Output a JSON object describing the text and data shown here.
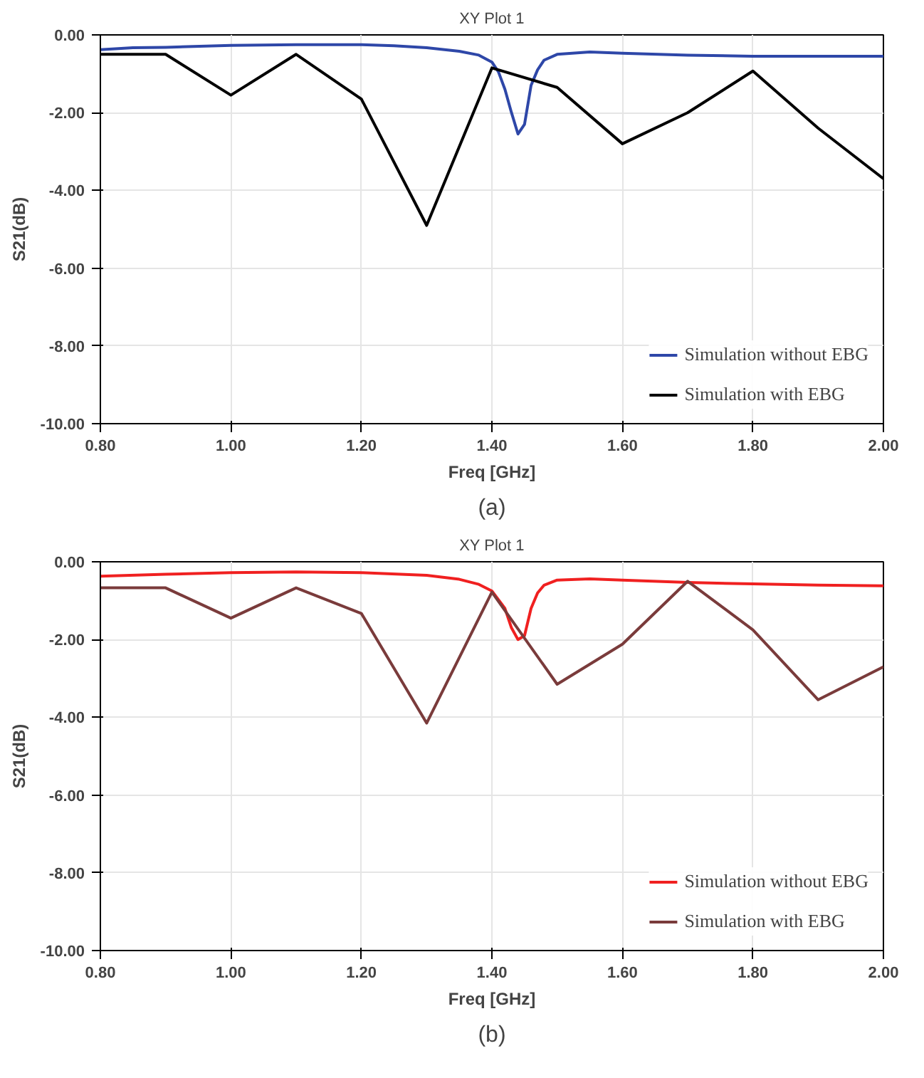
{
  "chart_data": [
    {
      "type": "line",
      "title": "XY Plot 1",
      "xlabel": "Freq [GHz]",
      "ylabel": "S21(dB)",
      "annotations": [
        "(a)"
      ],
      "xlim": [
        0.8,
        2.0
      ],
      "ylim": [
        -10,
        0
      ],
      "xticks": [
        {
          "value": 0.8,
          "label": "0.80"
        },
        {
          "value": 1.0,
          "label": "1.00"
        },
        {
          "value": 1.2,
          "label": "1.20"
        },
        {
          "value": 1.4,
          "label": "1.40"
        },
        {
          "value": 1.6,
          "label": "1.60"
        },
        {
          "value": 1.8,
          "label": "1.80"
        },
        {
          "value": 2.0,
          "label": "2.00"
        }
      ],
      "yticks": [
        {
          "value": 0,
          "label": "0.00"
        },
        {
          "value": -2,
          "label": "-2.00"
        },
        {
          "value": -4,
          "label": "-4.00"
        },
        {
          "value": -6,
          "label": "-6.00"
        },
        {
          "value": -8,
          "label": "-8.00"
        },
        {
          "value": -10,
          "label": "-10.00"
        }
      ],
      "grid": true,
      "legend": "bottom right",
      "line_style": "solid",
      "series": [
        {
          "name": "Simulation without EBG",
          "color": "#2e47a8",
          "x": [
            0.8,
            0.85,
            0.9,
            1.0,
            1.1,
            1.2,
            1.25,
            1.3,
            1.35,
            1.38,
            1.4,
            1.41,
            1.42,
            1.43,
            1.44,
            1.45,
            1.46,
            1.47,
            1.48,
            1.5,
            1.55,
            1.6,
            1.7,
            1.8,
            1.9,
            2.0
          ],
          "values": [
            -0.38,
            -0.33,
            -0.32,
            -0.27,
            -0.25,
            -0.25,
            -0.28,
            -0.33,
            -0.42,
            -0.52,
            -0.7,
            -0.95,
            -1.4,
            -2.0,
            -2.55,
            -2.3,
            -1.3,
            -0.9,
            -0.65,
            -0.5,
            -0.44,
            -0.47,
            -0.52,
            -0.55,
            -0.55,
            -0.55
          ]
        },
        {
          "name": "Simulation with EBG",
          "color": "#000000",
          "x": [
            0.8,
            0.9,
            1.0,
            1.1,
            1.2,
            1.3,
            1.4,
            1.5,
            1.6,
            1.7,
            1.8,
            1.9,
            2.0
          ],
          "values": [
            -0.5,
            -0.5,
            -1.55,
            -0.5,
            -1.65,
            -4.9,
            -0.85,
            -1.35,
            -2.8,
            -2.0,
            -0.93,
            -2.4,
            -3.7
          ]
        }
      ]
    },
    {
      "type": "line",
      "title": "XY Plot 1",
      "xlabel": "Freq [GHz]",
      "ylabel": "S21(dB)",
      "annotations": [
        "(b)"
      ],
      "xlim": [
        0.8,
        2.0
      ],
      "ylim": [
        -10,
        0
      ],
      "xticks": [
        {
          "value": 0.8,
          "label": "0.80"
        },
        {
          "value": 1.0,
          "label": "1.00"
        },
        {
          "value": 1.2,
          "label": "1.20"
        },
        {
          "value": 1.4,
          "label": "1.40"
        },
        {
          "value": 1.6,
          "label": "1.60"
        },
        {
          "value": 1.8,
          "label": "1.80"
        },
        {
          "value": 2.0,
          "label": "2.00"
        }
      ],
      "yticks": [
        {
          "value": 0,
          "label": "0.00"
        },
        {
          "value": -2,
          "label": "-2.00"
        },
        {
          "value": -4,
          "label": "-4.00"
        },
        {
          "value": -6,
          "label": "-6.00"
        },
        {
          "value": -8,
          "label": "-8.00"
        },
        {
          "value": -10,
          "label": "-10.00"
        }
      ],
      "grid": true,
      "legend": "bottom right",
      "line_style": "solid",
      "series": [
        {
          "name": "Simulation without EBG",
          "color": "#f02020",
          "x": [
            0.8,
            0.9,
            1.0,
            1.1,
            1.2,
            1.3,
            1.35,
            1.38,
            1.4,
            1.42,
            1.43,
            1.44,
            1.45,
            1.46,
            1.47,
            1.48,
            1.5,
            1.55,
            1.6,
            1.7,
            1.8,
            1.9,
            2.0
          ],
          "values": [
            -0.37,
            -0.32,
            -0.28,
            -0.26,
            -0.28,
            -0.35,
            -0.45,
            -0.58,
            -0.75,
            -1.2,
            -1.7,
            -2.0,
            -1.9,
            -1.2,
            -0.8,
            -0.6,
            -0.47,
            -0.44,
            -0.47,
            -0.53,
            -0.57,
            -0.6,
            -0.62
          ]
        },
        {
          "name": "Simulation with EBG",
          "color": "#7a3b3b",
          "x": [
            0.8,
            0.9,
            1.0,
            1.1,
            1.2,
            1.3,
            1.4,
            1.5,
            1.6,
            1.7,
            1.8,
            1.9,
            2.0
          ],
          "values": [
            -0.67,
            -0.67,
            -1.45,
            -0.67,
            -1.33,
            -4.15,
            -0.78,
            -3.15,
            -2.12,
            -0.5,
            -1.75,
            -3.55,
            -2.7
          ]
        }
      ]
    }
  ]
}
